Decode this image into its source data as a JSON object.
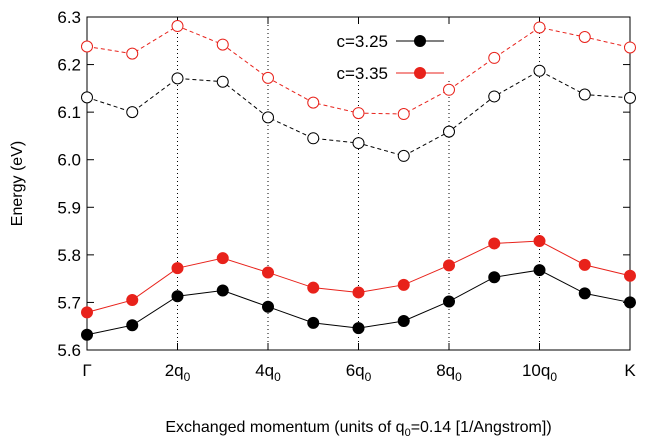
{
  "chart_data": {
    "type": "line",
    "title": "",
    "xlabel": "Exchanged momentum (units of q",
    "xlabel_sub": "0",
    "xlabel_rest": "=0.14 [1/Angstrom])",
    "ylabel": "Energy (eV)",
    "ylim": [
      5.6,
      6.3
    ],
    "yticks": [
      "5.6",
      "5.7",
      "5.8",
      "5.9",
      "6.0",
      "6.1",
      "6.2",
      "6.3"
    ],
    "xlim": [
      0,
      12
    ],
    "x": [
      0,
      1,
      2,
      3,
      4,
      5,
      6,
      7,
      8,
      9,
      10,
      11,
      12
    ],
    "xticks": [
      {
        "x": 0,
        "label": "Γ",
        "sub": ""
      },
      {
        "x": 2,
        "label": "2q",
        "sub": "0"
      },
      {
        "x": 4,
        "label": "4q",
        "sub": "0"
      },
      {
        "x": 6,
        "label": "6q",
        "sub": "0"
      },
      {
        "x": 8,
        "label": "8q",
        "sub": "0"
      },
      {
        "x": 10,
        "label": "10q",
        "sub": "0"
      },
      {
        "x": 12,
        "label": "K",
        "sub": ""
      }
    ],
    "vertical_grid_at": [
      2,
      4,
      6,
      8,
      10
    ],
    "legend_position": "top-center",
    "series": [
      {
        "name": "c=3.25",
        "color": "#000000",
        "style": "solid",
        "marker": "filled-circle",
        "values": [
          5.632,
          5.652,
          5.713,
          5.725,
          5.691,
          5.657,
          5.646,
          5.661,
          5.702,
          5.753,
          5.768,
          5.719,
          5.7
        ]
      },
      {
        "name": "c=3.35",
        "color": "#e8221b",
        "style": "solid",
        "marker": "filled-circle",
        "values": [
          5.679,
          5.705,
          5.772,
          5.793,
          5.763,
          5.731,
          5.721,
          5.737,
          5.778,
          5.824,
          5.829,
          5.779,
          5.756
        ]
      },
      {
        "name": "",
        "color": "#000000",
        "style": "dashed",
        "marker": "open-circle",
        "values": [
          6.131,
          6.1,
          6.171,
          6.164,
          6.089,
          6.045,
          6.035,
          6.008,
          6.059,
          6.133,
          6.187,
          6.137,
          6.13
        ]
      },
      {
        "name": "",
        "color": "#e8221b",
        "style": "dashed",
        "marker": "open-circle",
        "values": [
          6.238,
          6.223,
          6.281,
          6.242,
          6.172,
          6.12,
          6.098,
          6.096,
          6.147,
          6.214,
          6.278,
          6.258,
          6.236
        ]
      }
    ]
  }
}
